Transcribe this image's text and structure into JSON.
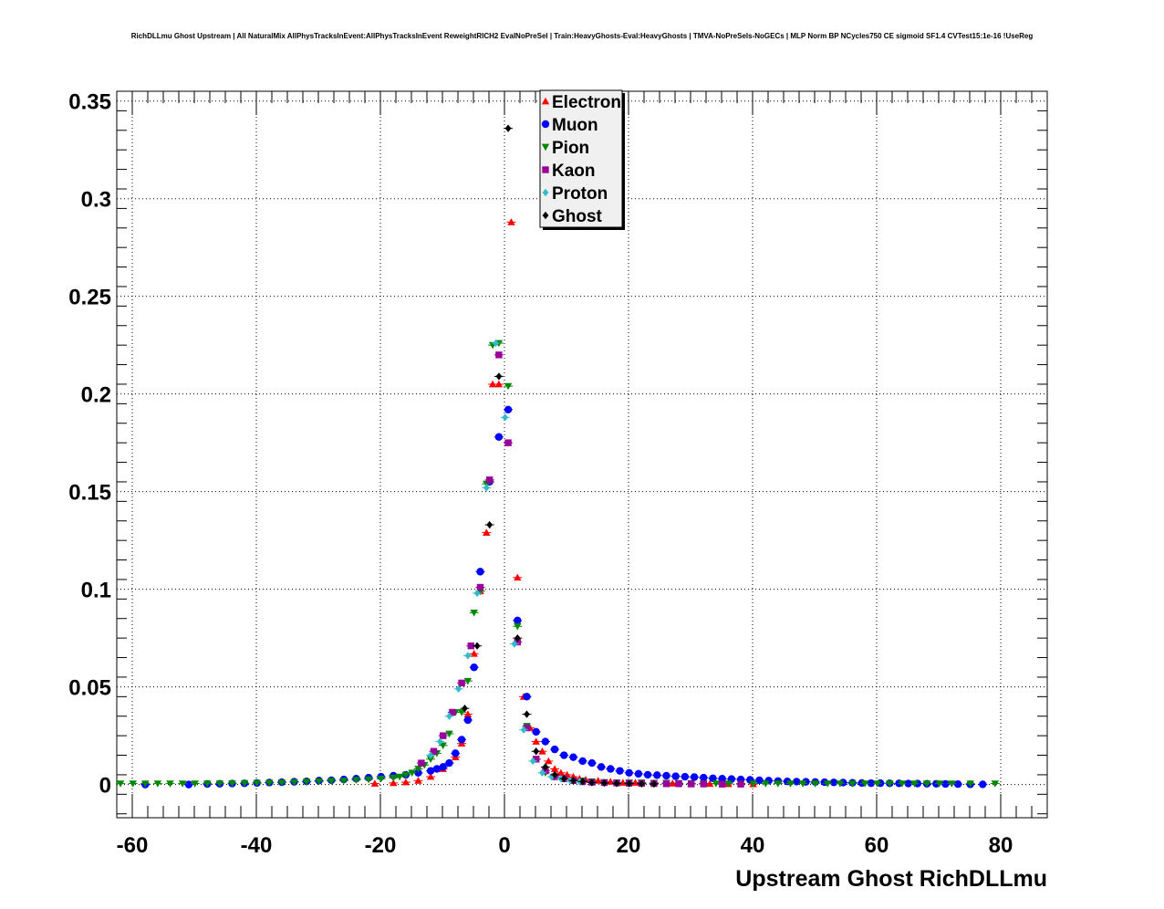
{
  "chart_data": {
    "type": "scatter",
    "title": "RichDLLmu Ghost Upstream | All NaturalMix AllPhysTracksInEvent:AllPhysTracksInEvent ReweightRICH2 EvalNoPreSel | Train:HeavyGhosts-Eval:HeavyGhosts | TMVA-NoPreSels-NoGECs | MLP Norm BP NCycles750 CE sigmoid SF1.4 CVTest15:1e-16 !UseReg",
    "xlabel": "Upstream Ghost RichDLLmu",
    "ylabel": "",
    "xlim": [
      -62.5,
      87.5
    ],
    "ylim": [
      -0.017,
      0.355
    ],
    "x_ticks": [
      -60,
      -40,
      -20,
      0,
      20,
      40,
      60,
      80
    ],
    "x_tick_labels": [
      "-60",
      "-40",
      "-20",
      "0",
      "20",
      "40",
      "60",
      "80"
    ],
    "y_ticks": [
      0,
      0.05,
      0.1,
      0.15,
      0.2,
      0.25,
      0.3,
      0.35
    ],
    "y_tick_labels": [
      "0",
      "0.05",
      "0.1",
      "0.15",
      "0.2",
      "0.25",
      "0.3",
      "0.35"
    ],
    "grid": true,
    "legend_position": "top-center",
    "series": [
      {
        "name": "Electron",
        "color": "#ff0000",
        "marker": "triangle-up",
        "x": [
          -20.9,
          -17.9,
          -15.9,
          -13.9,
          -11.9,
          -9.9,
          -7.9,
          -6.9,
          -5.9,
          -4.9,
          -3.9,
          -2.9,
          -1.9,
          -0.9,
          1.1,
          2.1,
          3.1,
          4.1,
          5.1,
          6.1,
          7.1,
          8.1,
          9.1,
          10.1,
          11.1,
          12.1,
          13.1,
          15.1,
          17.1,
          19.1,
          21.1,
          24.1,
          27.1,
          30.1,
          33.1,
          36.1,
          40.1
        ],
        "y": [
          0.0005,
          0.0008,
          0.0012,
          0.002,
          0.004,
          0.008,
          0.014,
          0.021,
          0.036,
          0.067,
          0.099,
          0.129,
          0.205,
          0.205,
          0.288,
          0.106,
          0.045,
          0.029,
          0.022,
          0.017,
          0.012,
          0.008,
          0.006,
          0.005,
          0.004,
          0.003,
          0.0025,
          0.002,
          0.0015,
          0.001,
          0.001,
          0.0008,
          0.0006,
          0.0005,
          0.0004,
          0.0003,
          0.0002
        ]
      },
      {
        "name": "Muon",
        "color": "#0000ff",
        "marker": "circle",
        "x": [
          -57.9,
          -50.9,
          -47.9,
          -45.9,
          -43.9,
          -41.9,
          -39.9,
          -37.9,
          -35.9,
          -33.9,
          -31.9,
          -29.9,
          -27.9,
          -25.9,
          -23.9,
          -21.9,
          -19.9,
          -17.9,
          -15.9,
          -13.9,
          -11.9,
          -10.9,
          -9.9,
          -8.9,
          -7.9,
          -6.9,
          -5.9,
          -4.9,
          -3.9,
          -2.4,
          -0.9,
          0.6,
          2.1,
          3.6,
          5.1,
          6.6,
          8.1,
          9.6,
          11.1,
          12.6,
          14.1,
          15.6,
          17.1,
          18.6,
          20.1,
          21.6,
          23.1,
          24.6,
          26.1,
          27.6,
          29.1,
          30.6,
          32.1,
          33.6,
          35.1,
          36.6,
          38.1,
          39.6,
          41.1,
          42.6,
          44.1,
          45.6,
          47.1,
          48.6,
          50.1,
          51.6,
          53.1,
          54.6,
          56.1,
          57.6,
          59.1,
          60.6,
          62.1,
          63.6,
          65.1,
          66.6,
          68.1,
          69.6,
          71.1,
          73.1,
          75.1,
          77.1
        ],
        "y": [
          0,
          0,
          0.0003,
          0.0004,
          0.0005,
          0.0006,
          0.0008,
          0.001,
          0.0012,
          0.0014,
          0.0016,
          0.002,
          0.0022,
          0.0026,
          0.003,
          0.0035,
          0.004,
          0.0045,
          0.005,
          0.006,
          0.007,
          0.008,
          0.009,
          0.011,
          0.016,
          0.023,
          0.033,
          0.06,
          0.109,
          0.155,
          0.178,
          0.192,
          0.084,
          0.045,
          0.027,
          0.022,
          0.018,
          0.015,
          0.014,
          0.012,
          0.011,
          0.009,
          0.008,
          0.007,
          0.006,
          0.0055,
          0.005,
          0.0048,
          0.0045,
          0.0042,
          0.004,
          0.0038,
          0.0035,
          0.0032,
          0.003,
          0.0028,
          0.0026,
          0.0024,
          0.0022,
          0.002,
          0.0018,
          0.0016,
          0.0015,
          0.0014,
          0.0013,
          0.0012,
          0.0011,
          0.001,
          0.0009,
          0.0008,
          0.0007,
          0.0007,
          0.0006,
          0.0006,
          0.0005,
          0.0005,
          0.0004,
          0.0004,
          0.0003,
          0.0002,
          0.0001,
          0.0001
        ]
      },
      {
        "name": "Pion",
        "color": "#008800",
        "marker": "triangle-down",
        "x": [
          -61.9,
          -59.9,
          -57.9,
          -55.9,
          -53.9,
          -51.9,
          -49.9,
          -47.9,
          -45.9,
          -43.9,
          -41.9,
          -39.9,
          -37.9,
          -35.9,
          -33.9,
          -31.9,
          -29.9,
          -27.9,
          -25.9,
          -23.9,
          -21.9,
          -19.9,
          -17.9,
          -16.9,
          -15.9,
          -14.9,
          -13.9,
          -12.9,
          -11.9,
          -10.9,
          -9.9,
          -8.9,
          -7.9,
          -6.9,
          -5.9,
          -4.9,
          -3.9,
          -2.9,
          -1.9,
          -0.9,
          0.6,
          2.1,
          3.6,
          5.1,
          6.6,
          8.1,
          9.6,
          11.1,
          12.6,
          14.1,
          16.1,
          18.1,
          20.1,
          22.1,
          24.1,
          26.1,
          28.1,
          30.1,
          32.1,
          34.1,
          36.1,
          38.1,
          40.1,
          42.1,
          44.1,
          46.1,
          48.1,
          50.1,
          52.1,
          54.1,
          56.1,
          58.1,
          60.1,
          62.1,
          64.1,
          66.1,
          68.1,
          70.1,
          72.1,
          75.1,
          79.1
        ],
        "y": [
          0.0005,
          0.0005,
          0.0005,
          0.0005,
          0.0005,
          0.0005,
          0.0005,
          0.0005,
          0.0005,
          0.0006,
          0.0007,
          0.0008,
          0.0009,
          0.001,
          0.0012,
          0.0014,
          0.0016,
          0.0018,
          0.002,
          0.0023,
          0.0026,
          0.003,
          0.0035,
          0.004,
          0.005,
          0.006,
          0.008,
          0.01,
          0.013,
          0.016,
          0.02,
          0.026,
          0.037,
          0.037,
          0.053,
          0.088,
          0.099,
          0.154,
          0.225,
          0.226,
          0.204,
          0.081,
          0.03,
          0.013,
          0.006,
          0.004,
          0.003,
          0.002,
          0.002,
          0.0015,
          0.0012,
          0.001,
          0.001,
          0.001,
          0.0008,
          0.0008,
          0.0007,
          0.0006,
          0.0006,
          0.0005,
          0.0005,
          0.0005,
          0.0005,
          0.0005,
          0.0005,
          0.0005,
          0.0005,
          0.0005,
          0.0005,
          0.0005,
          0.0005,
          0.0005,
          0.0005,
          0.0005,
          0.0005,
          0.0005,
          0.0005,
          0.0005,
          0.0005,
          0.0005,
          0.0005
        ]
      },
      {
        "name": "Kaon",
        "color": "#990099",
        "marker": "square",
        "x": [
          -13.4,
          -11.4,
          -9.9,
          -8.4,
          -6.9,
          -5.4,
          -3.9,
          -2.4,
          -0.9,
          0.6,
          2.1,
          3.6,
          5.1,
          6.6,
          8.1,
          9.6,
          11.1,
          12.6,
          14.1,
          16.1,
          18.1,
          20.1,
          22.1,
          24.1,
          26.1,
          28.1,
          30.1,
          32.1,
          35.1,
          38.1
        ],
        "y": [
          0.011,
          0.017,
          0.025,
          0.037,
          0.052,
          0.071,
          0.101,
          0.156,
          0.22,
          0.175,
          0.073,
          0.029,
          0.013,
          0.007,
          0.004,
          0.003,
          0.002,
          0.0015,
          0.0012,
          0.001,
          0.0008,
          0.0007,
          0.0006,
          0.0005,
          0.0004,
          0.0004,
          0.0003,
          0.0003,
          0.0002,
          0.0002
        ]
      },
      {
        "name": "Proton",
        "color": "#33bbcc",
        "marker": "diamond",
        "x": [
          -11.9,
          -10.4,
          -8.9,
          -7.4,
          -5.9,
          -4.4,
          -2.9,
          -1.4,
          0.1,
          1.6,
          3.1,
          4.6,
          6.1,
          7.6,
          9.1,
          10.6,
          12.1,
          14.1,
          16.1,
          18.1,
          20.1
        ],
        "y": [
          0.015,
          0.022,
          0.035,
          0.049,
          0.066,
          0.098,
          0.152,
          0.226,
          0.188,
          0.072,
          0.028,
          0.012,
          0.006,
          0.004,
          0.003,
          0.002,
          0.0015,
          0.001,
          0.0008,
          0.0006,
          0.0005
        ]
      },
      {
        "name": "Ghost",
        "color": "#000000",
        "marker": "diamond",
        "x": [
          -6.4,
          -4.4,
          -2.4,
          -0.9,
          0.6,
          2.1,
          3.6,
          5.1,
          6.6,
          8.1,
          9.6,
          11.1,
          12.6,
          14.1,
          16.1,
          18.1,
          20.1,
          22.1,
          24.1
        ],
        "y": [
          0.039,
          0.071,
          0.133,
          0.209,
          0.336,
          0.075,
          0.036,
          0.017,
          0.009,
          0.005,
          0.003,
          0.002,
          0.0015,
          0.001,
          0.0008,
          0.0006,
          0.0005,
          0.0004,
          0.0003
        ]
      }
    ]
  }
}
